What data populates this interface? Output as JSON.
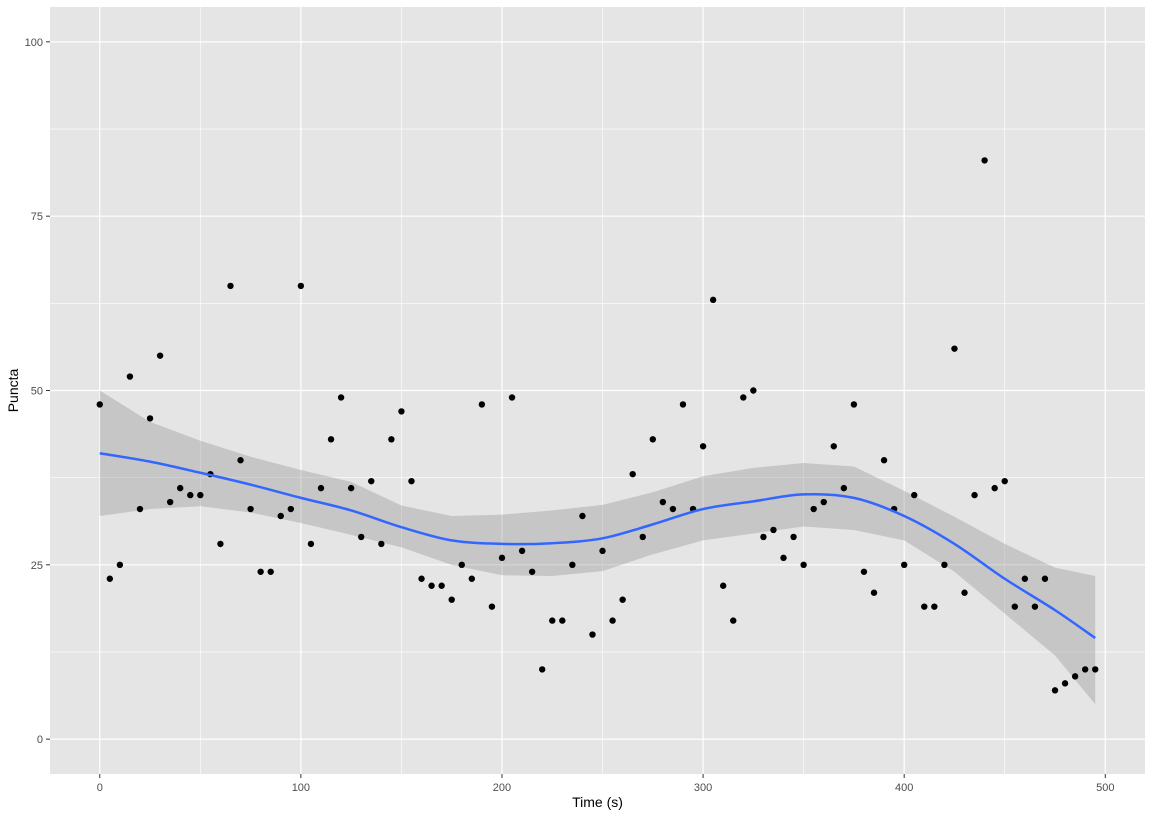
{
  "chart_data": {
    "type": "scatter",
    "title": "",
    "xlabel": "Time (s)",
    "ylabel": "Puncta",
    "xlim": [
      -24.75,
      519.75
    ],
    "ylim": [
      -5,
      105
    ],
    "x_ticks": [
      0,
      100,
      200,
      300,
      400,
      500
    ],
    "y_ticks": [
      0,
      25,
      50,
      75,
      100
    ],
    "x_tick_labels": [
      "0",
      "100",
      "200",
      "300",
      "400",
      "500"
    ],
    "y_tick_labels": [
      "0",
      "25",
      "50",
      "75",
      "100"
    ],
    "grid": true,
    "legend": "none",
    "colors": {
      "panel": "#e5e5e5",
      "grid": "#ffffff",
      "points": "#000000",
      "smooth_line": "#3366ff",
      "ribbon": "#999999"
    },
    "points": {
      "x": [
        0,
        5,
        10,
        15,
        20,
        25,
        30,
        35,
        40,
        45,
        50,
        55,
        60,
        65,
        70,
        75,
        80,
        85,
        90,
        95,
        100,
        105,
        110,
        115,
        120,
        125,
        130,
        135,
        140,
        145,
        150,
        155,
        160,
        165,
        170,
        175,
        180,
        185,
        190,
        195,
        200,
        205,
        210,
        215,
        220,
        225,
        230,
        235,
        240,
        245,
        250,
        255,
        260,
        265,
        270,
        275,
        280,
        285,
        290,
        295,
        300,
        305,
        310,
        315,
        320,
        325,
        330,
        335,
        340,
        345,
        350,
        355,
        360,
        365,
        370,
        375,
        380,
        385,
        390,
        395,
        400,
        405,
        410,
        415,
        420,
        425,
        430,
        435,
        440,
        445,
        450,
        455,
        460,
        465,
        470,
        475,
        480,
        485,
        490,
        495
      ],
      "y": [
        48,
        23,
        25,
        52,
        33,
        46,
        55,
        34,
        36,
        35,
        35,
        38,
        28,
        65,
        40,
        33,
        24,
        24,
        32,
        33,
        65,
        28,
        36,
        43,
        49,
        36,
        29,
        37,
        28,
        43,
        47,
        37,
        23,
        22,
        22,
        20,
        25,
        23,
        48,
        19,
        26,
        49,
        27,
        24,
        10,
        17,
        17,
        25,
        32,
        15,
        27,
        17,
        20,
        38,
        29,
        43,
        34,
        33,
        48,
        33,
        42,
        63,
        22,
        17,
        49,
        50,
        29,
        30,
        26,
        29,
        25,
        33,
        34,
        42,
        36,
        48,
        24,
        21,
        40,
        33,
        25,
        35,
        19,
        19,
        25,
        56,
        21,
        35,
        83,
        36,
        37,
        19,
        23,
        19,
        23,
        7,
        8,
        9,
        10,
        10
      ]
    },
    "smooth": {
      "x": [
        0,
        25,
        50,
        75,
        100,
        125,
        150,
        175,
        200,
        225,
        250,
        275,
        300,
        325,
        350,
        375,
        400,
        425,
        450,
        475,
        495
      ],
      "y": [
        41,
        39.8,
        38.2,
        36.5,
        34.6,
        32.8,
        30.4,
        28.5,
        28,
        28.1,
        28.8,
        30.8,
        33,
        34.1,
        35.1,
        34.6,
        32,
        28,
        23,
        18.5,
        14.5
      ],
      "lower": [
        32,
        33,
        33.4,
        32.5,
        31,
        29.3,
        27.5,
        25,
        23.5,
        23.4,
        24.1,
        26.5,
        28.5,
        29.5,
        30.5,
        30,
        28.5,
        24,
        18,
        12,
        5
      ],
      "upper": [
        50,
        45.5,
        42.8,
        40.5,
        38.6,
        36.9,
        33.5,
        32,
        32.2,
        32.8,
        33.6,
        35.4,
        37.7,
        38.9,
        39.6,
        39.1,
        35.6,
        31.9,
        28,
        24.6,
        23.4
      ]
    }
  }
}
